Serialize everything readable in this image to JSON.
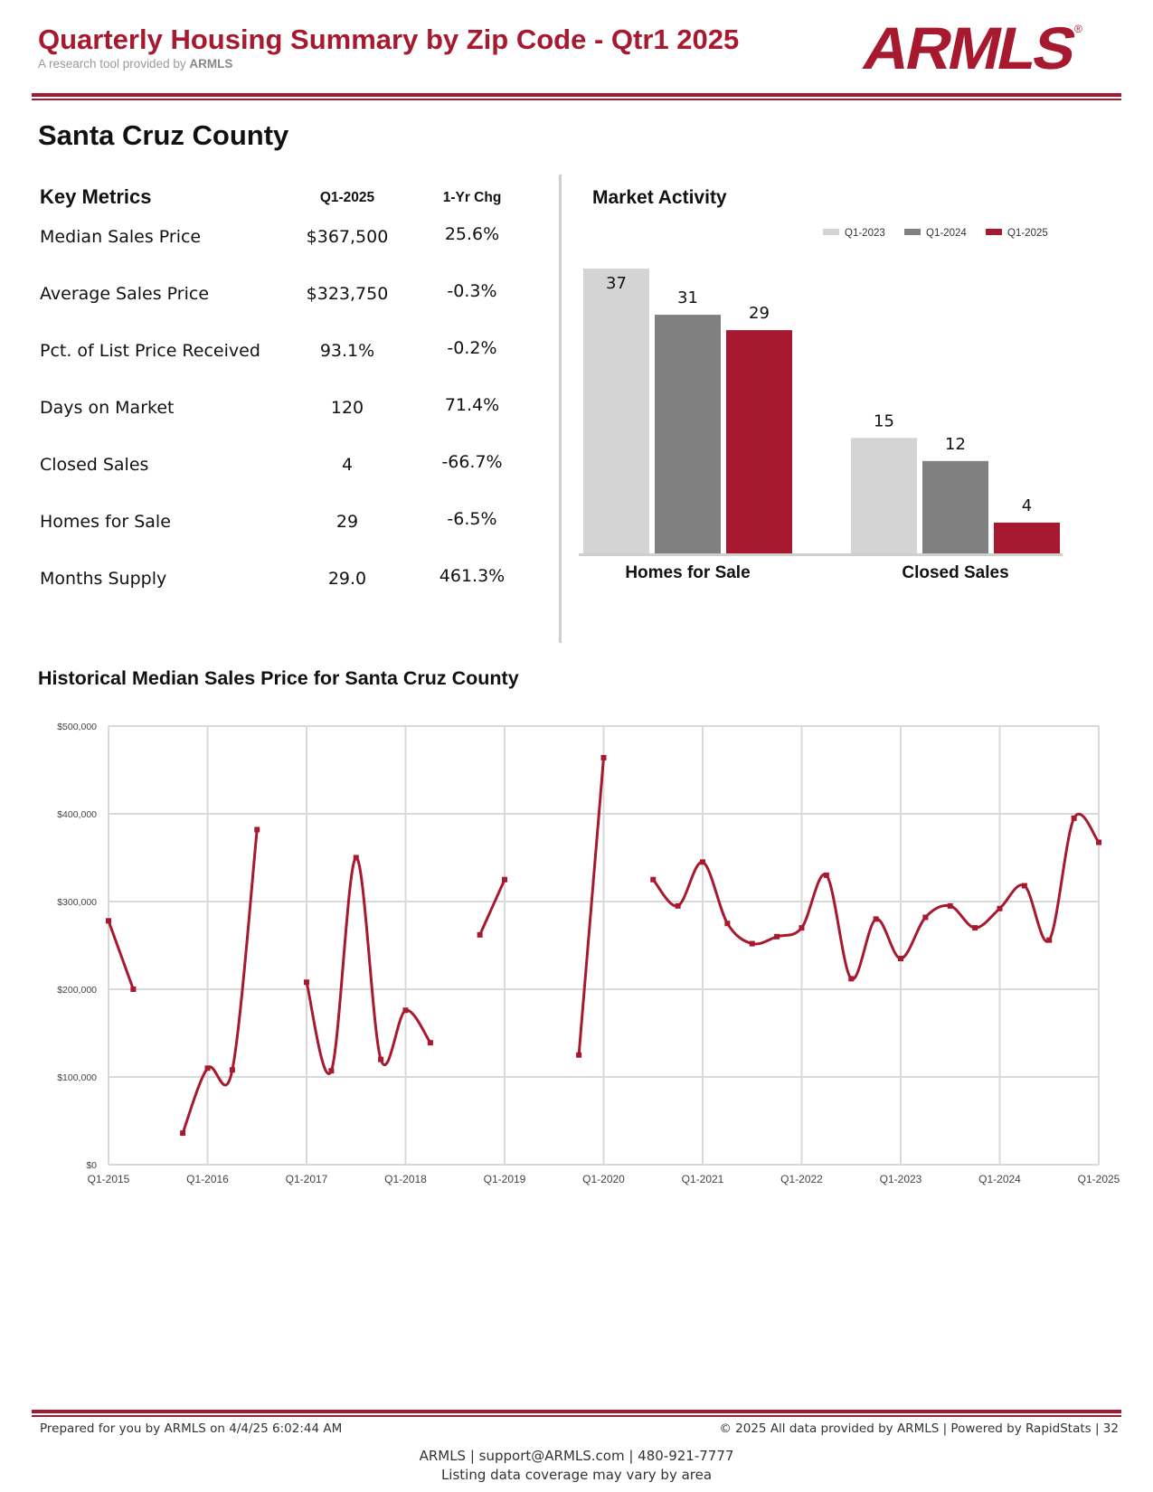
{
  "header": {
    "title": "Quarterly Housing Summary by Zip Code - Qtr1 2025",
    "subtitle_prefix": "A research tool provided by",
    "subtitle_brand": "ARMLS",
    "logo_text": "ARMLS",
    "logo_mark": "®",
    "brand_color": "#a6192e"
  },
  "county": "Santa Cruz County",
  "key_metrics": {
    "heading": "Key Metrics",
    "col_current": "Q1-2025",
    "col_change": "1-Yr Chg",
    "rows": [
      {
        "label": "Median Sales Price",
        "value": "$367,500",
        "change": "25.6%"
      },
      {
        "label": "Average Sales Price",
        "value": "$323,750",
        "change": "-0.3%"
      },
      {
        "label": "Pct. of List Price Received",
        "value": "93.1%",
        "change": "-0.2%"
      },
      {
        "label": "Days on Market",
        "value": "120",
        "change": "71.4%"
      },
      {
        "label": "Closed Sales",
        "value": "4",
        "change": "-66.7%"
      },
      {
        "label": "Homes for Sale",
        "value": "29",
        "change": "-6.5%"
      },
      {
        "label": "Months Supply",
        "value": "29.0",
        "change": "461.3%"
      }
    ]
  },
  "market_activity": {
    "title": "Market Activity"
  },
  "historical": {
    "title": "Historical Median Sales Price for Santa Cruz County"
  },
  "chart_data": [
    {
      "type": "bar",
      "title": "Market Activity",
      "categories": [
        "Homes for Sale",
        "Closed Sales"
      ],
      "series": [
        {
          "name": "Q1-2023",
          "color": "#d4d4d4",
          "values": [
            37,
            15
          ]
        },
        {
          "name": "Q1-2024",
          "color": "#808080",
          "values": [
            31,
            12
          ]
        },
        {
          "name": "Q1-2025",
          "color": "#a6192e",
          "values": [
            29,
            4
          ]
        }
      ],
      "legend": "top-right",
      "data_labels": true
    },
    {
      "type": "line",
      "title": "Historical Median Sales Price for Santa Cruz County",
      "x_ticks": [
        "Q1-2015",
        "Q1-2016",
        "Q1-2017",
        "Q1-2018",
        "Q1-2019",
        "Q1-2020",
        "Q1-2021",
        "Q1-2022",
        "Q1-2023",
        "Q1-2024",
        "Q1-2025"
      ],
      "y_ticks": [
        "$0",
        "$100,000",
        "$200,000",
        "$300,000",
        "$400,000",
        "$500,000"
      ],
      "ylim": [
        0,
        500000
      ],
      "line_color": "#a6192e",
      "grid": true,
      "series": [
        {
          "values": [
            {
              "x": "Q1-2015",
              "y": 278000
            },
            {
              "x": "Q2-2015",
              "y": 200000
            },
            {
              "x": "Q3-2015",
              "y": null
            },
            {
              "x": "Q4-2015",
              "y": 36000
            },
            {
              "x": "Q1-2016",
              "y": 110000
            },
            {
              "x": "Q2-2016",
              "y": 108000
            },
            {
              "x": "Q3-2016",
              "y": 382000
            },
            {
              "x": "Q4-2016",
              "y": null
            },
            {
              "x": "Q1-2017",
              "y": 208000
            },
            {
              "x": "Q2-2017",
              "y": 107000
            },
            {
              "x": "Q3-2017",
              "y": 350000
            },
            {
              "x": "Q4-2017",
              "y": 120000
            },
            {
              "x": "Q1-2018",
              "y": 176000
            },
            {
              "x": "Q2-2018",
              "y": 139000
            },
            {
              "x": "Q3-2018",
              "y": null
            },
            {
              "x": "Q4-2018",
              "y": 262000
            },
            {
              "x": "Q1-2019",
              "y": 325000
            },
            {
              "x": "Q2-2019",
              "y": null
            },
            {
              "x": "Q3-2019",
              "y": null
            },
            {
              "x": "Q4-2019",
              "y": 125000
            },
            {
              "x": "Q1-2020",
              "y": 464000
            },
            {
              "x": "Q2-2020",
              "y": null
            },
            {
              "x": "Q3-2020",
              "y": 325000
            },
            {
              "x": "Q4-2020",
              "y": 295000
            },
            {
              "x": "Q1-2021",
              "y": 345000
            },
            {
              "x": "Q2-2021",
              "y": 275000
            },
            {
              "x": "Q3-2021",
              "y": 252000
            },
            {
              "x": "Q4-2021",
              "y": 260000
            },
            {
              "x": "Q1-2022",
              "y": 270000
            },
            {
              "x": "Q2-2022",
              "y": 330000
            },
            {
              "x": "Q3-2022",
              "y": 212000
            },
            {
              "x": "Q4-2022",
              "y": 280000
            },
            {
              "x": "Q1-2023",
              "y": 235000
            },
            {
              "x": "Q2-2023",
              "y": 282000
            },
            {
              "x": "Q3-2023",
              "y": 295000
            },
            {
              "x": "Q4-2023",
              "y": 270000
            },
            {
              "x": "Q1-2024",
              "y": 292000
            },
            {
              "x": "Q2-2024",
              "y": 318000
            },
            {
              "x": "Q3-2024",
              "y": 256000
            },
            {
              "x": "Q4-2024",
              "y": 395000
            },
            {
              "x": "Q1-2025",
              "y": 367500
            }
          ]
        }
      ]
    }
  ],
  "footer": {
    "prepared": "Prepared for you by ARMLS on 4/4/25 6:02:44 AM",
    "copyright": "© 2025 All data provided by ARMLS | Powered by RapidStats  | 32",
    "contact": "ARMLS | support@ARMLS.com | 480-921-7777",
    "coverage": "Listing data coverage may vary by area"
  }
}
